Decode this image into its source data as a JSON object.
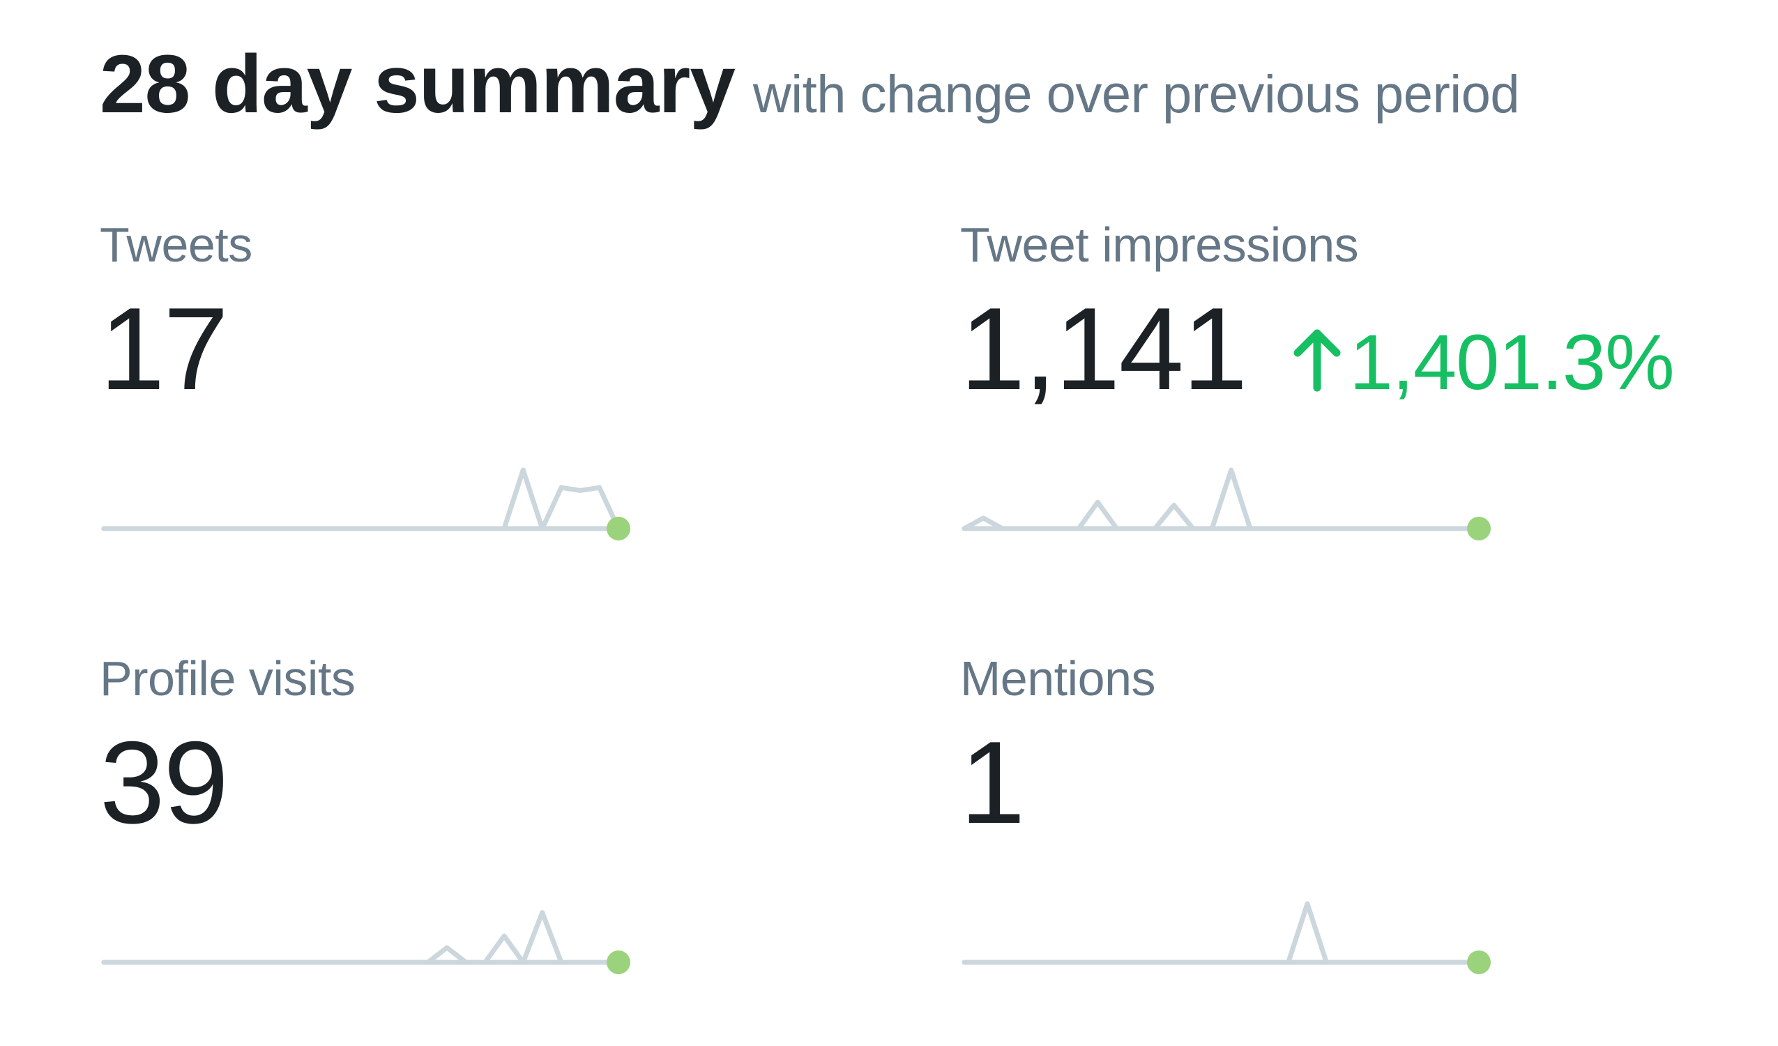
{
  "header": {
    "title": "28 day summary",
    "subtitle": "with change over previous period"
  },
  "colors": {
    "title": "#1c2126",
    "label": "#657786",
    "positive_change": "#17bf63",
    "sparkline": "#ccd6dd",
    "sparkline_endpoint": "#9bd27c"
  },
  "metrics": [
    {
      "label": "Tweets",
      "value": "17",
      "change": null,
      "sparkline": [
        0,
        0,
        0,
        0,
        0,
        0,
        0,
        0,
        0,
        0,
        0,
        0,
        0,
        0,
        0,
        0,
        0,
        0,
        0,
        0,
        0,
        0,
        1,
        0,
        0.7,
        0.65,
        0.7,
        0
      ]
    },
    {
      "label": "Tweet impressions",
      "value": "1,141",
      "change": {
        "direction": "up",
        "icon": "arrow-up-icon",
        "text": "1,401.3%"
      },
      "sparkline": [
        0,
        0.18,
        0,
        0,
        0,
        0,
        0,
        0.45,
        0,
        0,
        0,
        0.4,
        0,
        0,
        1,
        0,
        0,
        0,
        0,
        0,
        0,
        0,
        0,
        0,
        0,
        0,
        0,
        0
      ]
    },
    {
      "label": "Profile visits",
      "value": "39",
      "change": null,
      "sparkline": [
        0,
        0,
        0,
        0,
        0,
        0,
        0,
        0,
        0,
        0,
        0,
        0,
        0,
        0,
        0,
        0,
        0,
        0,
        0.25,
        0,
        0,
        0.45,
        0,
        0.85,
        0,
        0,
        0,
        0
      ]
    },
    {
      "label": "Mentions",
      "value": "1",
      "change": null,
      "sparkline": [
        0,
        0,
        0,
        0,
        0,
        0,
        0,
        0,
        0,
        0,
        0,
        0,
        0,
        0,
        0,
        0,
        0,
        0,
        1,
        0,
        0,
        0,
        0,
        0,
        0,
        0,
        0,
        0
      ]
    }
  ]
}
